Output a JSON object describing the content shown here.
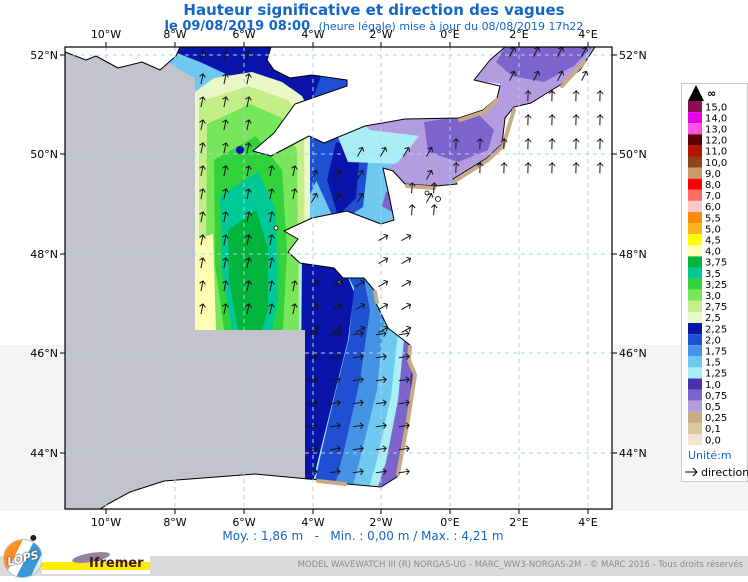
{
  "header": {
    "title": "Hauteur significative et direction des vagues",
    "subtitle_bold": "le 09/08/2019 08:00",
    "subtitle_rest": "(heure légale) mise à jour du 08/08/2019 17h22"
  },
  "map": {
    "x_tick_labels": [
      "10°W",
      "8°W",
      "6°W",
      "4°W",
      "2°W",
      "0°E",
      "2°E",
      "4°E"
    ],
    "y_tick_labels": [
      "52°N",
      "50°N",
      "48°N",
      "46°N",
      "44°N"
    ],
    "colors": {
      "no_data": "#c2c3cc",
      "land": "#ffffff",
      "coastline": "#000000",
      "grid": "#a9d3ee",
      "frame": "#000000",
      "arrow": "#141414"
    },
    "direction_zones": [
      {
        "zone": "celtic-green-block",
        "bearing_deg": 12
      },
      {
        "zone": "western-channel",
        "bearing_deg": 30
      },
      {
        "zone": "eastern-channel",
        "bearing_deg": 2
      },
      {
        "zone": "north-sea",
        "bearing_deg": 28
      },
      {
        "zone": "gulf-st-malo",
        "bearing_deg": 5
      },
      {
        "zone": "biscay-north",
        "bearing_deg": 60
      },
      {
        "zone": "biscay-south",
        "bearing_deg": 82
      }
    ]
  },
  "legend": {
    "infinity_label": "∞",
    "unit_label": "Unité:m",
    "direction_label": "direction",
    "entries": [
      {
        "value": "15,0",
        "color": "#8c0e52"
      },
      {
        "value": "14,0",
        "color": "#e800e8"
      },
      {
        "value": "13,0",
        "color": "#ff50e6"
      },
      {
        "value": "12,0",
        "color": "#600000"
      },
      {
        "value": "11,0",
        "color": "#b41400"
      },
      {
        "value": "10,0",
        "color": "#8c4614"
      },
      {
        "value": "9,0",
        "color": "#c89b69"
      },
      {
        "value": "8,0",
        "color": "#ff0000"
      },
      {
        "value": "7,0",
        "color": "#ff6e64"
      },
      {
        "value": "6,0",
        "color": "#ffc8c8"
      },
      {
        "value": "5,5",
        "color": "#ff8c00"
      },
      {
        "value": "5,0",
        "color": "#ffb41e"
      },
      {
        "value": "4,5",
        "color": "#ffff00"
      },
      {
        "value": "4,0",
        "color": "#ffffb4"
      },
      {
        "value": "3,75",
        "color": "#00b43c"
      },
      {
        "value": "3,5",
        "color": "#00c896"
      },
      {
        "value": "3,25",
        "color": "#32d23c"
      },
      {
        "value": "3,0",
        "color": "#78e65a"
      },
      {
        "value": "2,75",
        "color": "#c3ee88"
      },
      {
        "value": "2,5",
        "color": "#eaf7c6"
      },
      {
        "value": "2,25",
        "color": "#0a14aa"
      },
      {
        "value": "2,0",
        "color": "#2050d2"
      },
      {
        "value": "1,75",
        "color": "#4693e6"
      },
      {
        "value": "1,5",
        "color": "#6ec8f0"
      },
      {
        "value": "1,25",
        "color": "#aaeef5"
      },
      {
        "value": "1,0",
        "color": "#4632aa"
      },
      {
        "value": "0,75",
        "color": "#7d64cd"
      },
      {
        "value": "0,5",
        "color": "#b49ce1"
      },
      {
        "value": "0,25",
        "color": "#c8ab85"
      },
      {
        "value": "0,1",
        "color": "#dcc8a0"
      },
      {
        "value": "0,0",
        "color": "#f0e6cd"
      }
    ]
  },
  "stats": {
    "line": "Moy. : 1,86 m   -   Min. : 0,00 m / Max. : 4,21 m"
  },
  "footer": {
    "credit": "MODEL WAVEWATCH III (R) NORGAS-UG - MARC_WW3-NORGAS-2M - © MARC 2016 - Tous droits réservés",
    "lops_text": "LOPS",
    "ifremer_text": "Ifremer"
  },
  "chart_data": {
    "type": "heatmap",
    "title": "Hauteur significative et direction des vagues",
    "unit": "m",
    "x_ticks": [
      "10°W",
      "8°W",
      "6°W",
      "4°W",
      "2°W",
      "0°E",
      "2°E",
      "4°E"
    ],
    "y_ticks": [
      "52°N",
      "50°N",
      "48°N",
      "46°N",
      "44°N"
    ],
    "levels_m": [
      0,
      0.1,
      0.25,
      0.5,
      0.75,
      1.0,
      1.25,
      1.5,
      1.75,
      2.0,
      2.25,
      2.5,
      2.75,
      3.0,
      3.25,
      3.5,
      3.75,
      4.0,
      4.5,
      5.0,
      5.5,
      6.0,
      7.0,
      8.0,
      9.0,
      10.0,
      11.0,
      12.0,
      13.0,
      14.0,
      15.0
    ],
    "stats": {
      "mean_m": 1.86,
      "min_m": 0.0,
      "max_m": 4.21
    },
    "legend_position": "right",
    "grid": true
  }
}
